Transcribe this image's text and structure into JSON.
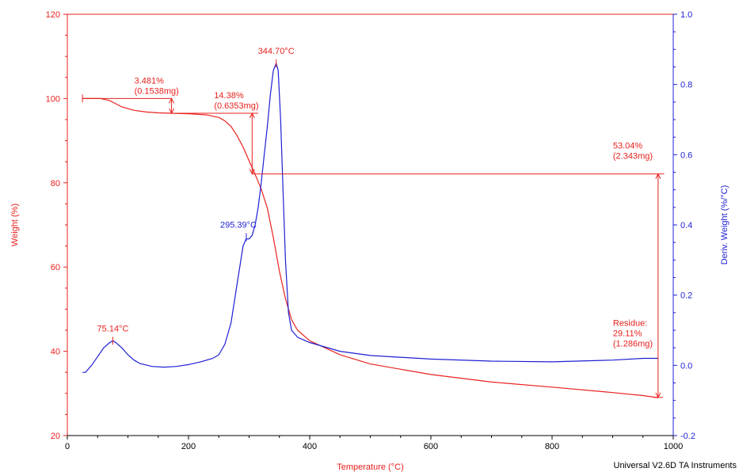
{
  "chart_data": {
    "type": "line",
    "xlabel": "Temperature (°C)",
    "ylabel_left": "Weight (%)",
    "ylabel_right": "Deriv. Weight (%/°C)",
    "xlim": [
      0,
      1000
    ],
    "ylim_left": [
      20,
      120
    ],
    "ylim_right": [
      -0.2,
      1.0
    ],
    "x_ticks": [
      "0",
      "200",
      "400",
      "600",
      "800",
      "1000"
    ],
    "y_left_ticks": [
      "20",
      "40",
      "60",
      "80",
      "100",
      "120"
    ],
    "y_right_ticks": [
      "-0.2",
      "0.0",
      "0.2",
      "0.4",
      "0.6",
      "0.8",
      "1.0"
    ],
    "colors": {
      "weight": "#e8221e",
      "deriv": "#1f1fd4",
      "axis": "#000000"
    },
    "series": [
      {
        "key": "weight",
        "axis": "left",
        "x": [
          25,
          40,
          55,
          70,
          90,
          110,
          130,
          150,
          170,
          200,
          230,
          250,
          260,
          270,
          280,
          290,
          300,
          310,
          320,
          330,
          340,
          350,
          360,
          370,
          380,
          400,
          450,
          500,
          600,
          700,
          800,
          900,
          950,
          975
        ],
        "y": [
          100,
          100,
          100,
          99.5,
          98,
          97.2,
          96.8,
          96.6,
          96.5,
          96.4,
          96.1,
          95.5,
          94.7,
          93.4,
          91.2,
          88.5,
          85.2,
          82.0,
          78.5,
          74.0,
          67.0,
          59.0,
          52.5,
          47.5,
          45.0,
          42.5,
          39.2,
          37.0,
          34.5,
          32.7,
          31.5,
          30.2,
          29.5,
          29.0
        ]
      },
      {
        "key": "deriv",
        "axis": "right",
        "x": [
          25,
          30,
          40,
          50,
          60,
          70,
          75,
          80,
          90,
          100,
          110,
          120,
          140,
          160,
          180,
          200,
          220,
          240,
          250,
          260,
          270,
          280,
          290,
          295,
          300,
          305,
          310,
          315,
          320,
          325,
          330,
          335,
          340,
          344.7,
          348,
          352,
          356,
          360,
          365,
          370,
          380,
          400,
          450,
          500,
          600,
          700,
          800,
          900,
          950,
          975
        ],
        "y": [
          -0.02,
          -0.02,
          0.0,
          0.025,
          0.05,
          0.065,
          0.07,
          0.065,
          0.05,
          0.03,
          0.015,
          0.005,
          -0.003,
          -0.005,
          -0.003,
          0.002,
          0.01,
          0.02,
          0.03,
          0.06,
          0.12,
          0.23,
          0.34,
          0.36,
          0.36,
          0.37,
          0.4,
          0.45,
          0.52,
          0.6,
          0.68,
          0.77,
          0.84,
          0.86,
          0.84,
          0.7,
          0.5,
          0.3,
          0.15,
          0.1,
          0.08,
          0.065,
          0.04,
          0.028,
          0.018,
          0.012,
          0.01,
          0.015,
          0.02,
          0.02
        ]
      }
    ],
    "annotations": {
      "step1": {
        "pct": "3.481%",
        "mg": "(0.1538mg)",
        "y_top": 100,
        "y_bottom": 96.5,
        "x_mark": 172,
        "x_left": 25,
        "x_right": 172
      },
      "step2": {
        "pct": "14.38%",
        "mg": "(0.6353mg)",
        "y_top": 96.5,
        "y_bottom": 82.1,
        "x_mark": 305,
        "x_left": 172,
        "x_right": 315
      },
      "step3": {
        "pct": "53.04%",
        "mg": "(2.343mg)",
        "y_top": 82.1,
        "y_bottom": 29.06,
        "x_mark": 975,
        "x_left": 305,
        "x_right": 985
      },
      "residue": {
        "label": "Residue:",
        "pct": "29.11%",
        "mg": "(1.286mg)",
        "x": 975,
        "y": 29.1
      },
      "peak1": {
        "label": "75.14°C",
        "x": 75.14,
        "y": 0.07
      },
      "peak2": {
        "label": "295.39°C",
        "x": 295.39,
        "y": 0.365
      },
      "peak3": {
        "label": "344.70°C",
        "x": 344.7,
        "y": 0.86
      }
    }
  },
  "footer": "Universal V2.6D TA Instruments"
}
